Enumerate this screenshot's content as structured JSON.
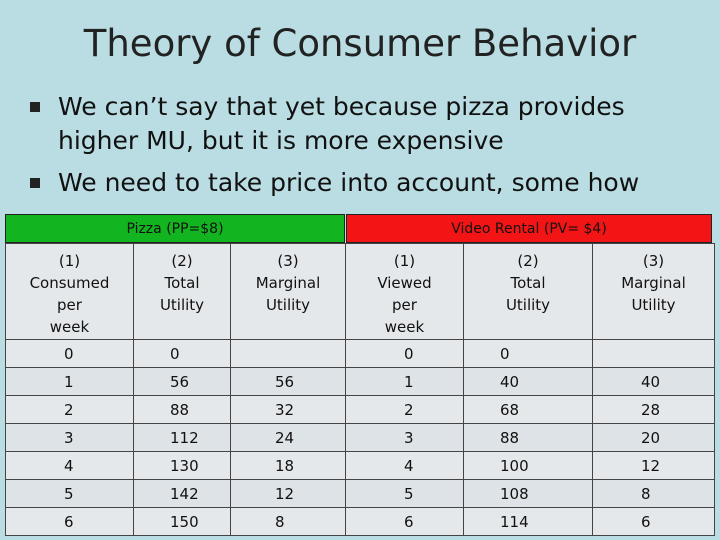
{
  "slide": {
    "title": "Theory of Consumer Behavior",
    "bullets": [
      "We can’t say that yet because pizza provides higher MU, but it is more expensive",
      "We need to take price into account, some how"
    ]
  },
  "table": {
    "pizza_header": "Pizza (PP=$8)",
    "video_header": "Video Rental (PV= $4)",
    "columns": [
      [
        "(1)",
        "Consumed",
        "per",
        "week"
      ],
      [
        "(2)",
        "Total",
        "Utility"
      ],
      [
        "(3)",
        "Marginal",
        "Utility"
      ],
      [
        "(1)",
        "Viewed",
        "per",
        "week"
      ],
      [
        "(2)",
        "Total",
        "Utility"
      ],
      [
        "(3)",
        "Marginal",
        "Utility"
      ]
    ],
    "rows": [
      [
        "0",
        "0",
        "",
        "0",
        "0",
        ""
      ],
      [
        "1",
        "56",
        "56",
        "1",
        "40",
        "40"
      ],
      [
        "2",
        "88",
        "32",
        "2",
        "68",
        "28"
      ],
      [
        "3",
        "112",
        "24",
        "3",
        "88",
        "20"
      ],
      [
        "4",
        "130",
        "18",
        "4",
        "100",
        "12"
      ],
      [
        "5",
        "142",
        "12",
        "5",
        "108",
        "8"
      ],
      [
        "6",
        "150",
        "8",
        "6",
        "114",
        "6"
      ]
    ]
  },
  "colors": {
    "background": "#b9dde3",
    "pizza_header": "#12b51f",
    "video_header": "#f31515"
  }
}
